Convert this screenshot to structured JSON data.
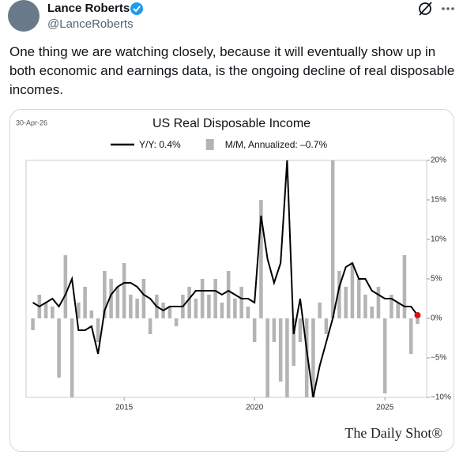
{
  "tweet": {
    "name": "Lance Roberts",
    "handle": "@LanceRoberts",
    "text": "One thing we are watching closely, because it will eventually show up in both economic and earnings data, is the ongoing decline of real disposable incomes."
  },
  "chart_data": {
    "type": "combo",
    "date": "30-Apr-26",
    "title": "US Real Disposable Income",
    "source": "The Daily Shot®",
    "x": [
      2011.5,
      2011.75,
      2012,
      2012.25,
      2012.5,
      2012.75,
      2013,
      2013.25,
      2013.5,
      2013.75,
      2014,
      2014.25,
      2014.5,
      2014.75,
      2015,
      2015.25,
      2015.5,
      2015.75,
      2016,
      2016.25,
      2016.5,
      2016.75,
      2017,
      2017.25,
      2017.5,
      2017.75,
      2018,
      2018.25,
      2018.5,
      2018.75,
      2019,
      2019.25,
      2019.5,
      2019.75,
      2020,
      2020.25,
      2020.5,
      2020.75,
      2021,
      2021.25,
      2021.5,
      2021.75,
      2022,
      2022.25,
      2022.5,
      2022.75,
      2023,
      2023.25,
      2023.5,
      2023.75,
      2024,
      2024.25,
      2024.5,
      2024.75,
      2025,
      2025.25,
      2025.5,
      2025.75,
      2026,
      2026.25
    ],
    "series": [
      {
        "name": "M/M, Annualized: –0.7%",
        "type": "bar",
        "color": "#b4b4b4",
        "values": [
          -1.5,
          3,
          2,
          1.5,
          -7.5,
          8,
          -10,
          2,
          4,
          1,
          -3,
          6,
          5,
          4,
          7,
          3,
          2.5,
          5,
          -2,
          3,
          2,
          1.5,
          -1,
          3,
          4,
          2.5,
          5,
          3,
          5,
          2,
          6,
          2.5,
          4,
          1.5,
          -3,
          15,
          -10,
          -3,
          -8,
          -10,
          -6,
          -3,
          -10,
          -10,
          2,
          -2,
          20,
          6,
          4,
          7,
          5,
          3,
          1.5,
          4,
          -9.5,
          3,
          2,
          8,
          -4.5,
          -0.7
        ]
      },
      {
        "name": "Y/Y: 0.4%",
        "type": "line",
        "color": "#000000",
        "end_marker_color": "#e01010",
        "values": [
          2,
          1.5,
          2,
          2.5,
          1.5,
          3,
          5,
          -1.5,
          -1.5,
          -1,
          -4.5,
          1,
          3,
          4,
          4.5,
          4.5,
          4,
          3,
          2.5,
          1.5,
          1,
          1.5,
          1.5,
          1.5,
          2.5,
          3.5,
          3.5,
          3.5,
          3.5,
          3,
          3.5,
          3,
          2.5,
          2.5,
          2,
          13,
          7.5,
          4.5,
          7,
          20,
          -2,
          2.5,
          -4,
          -10,
          -6,
          -3,
          0,
          4,
          6.5,
          7,
          5,
          5,
          3.5,
          3,
          2.5,
          2.5,
          2,
          1.5,
          1.5,
          0.4
        ]
      }
    ],
    "xlim": [
      2011.24,
      2026.6
    ],
    "xticks": [
      2015,
      2020,
      2025
    ],
    "ylim": [
      -10,
      20
    ],
    "yticks": [
      {
        "value": -10,
        "label": "−10%"
      },
      {
        "value": -5,
        "label": "−5%"
      },
      {
        "value": 0,
        "label": "0%"
      },
      {
        "value": 5,
        "label": "5%"
      },
      {
        "value": 10,
        "label": "10%"
      },
      {
        "value": 15,
        "label": "15%"
      },
      {
        "value": 20,
        "label": "20%"
      }
    ],
    "grid": false
  }
}
